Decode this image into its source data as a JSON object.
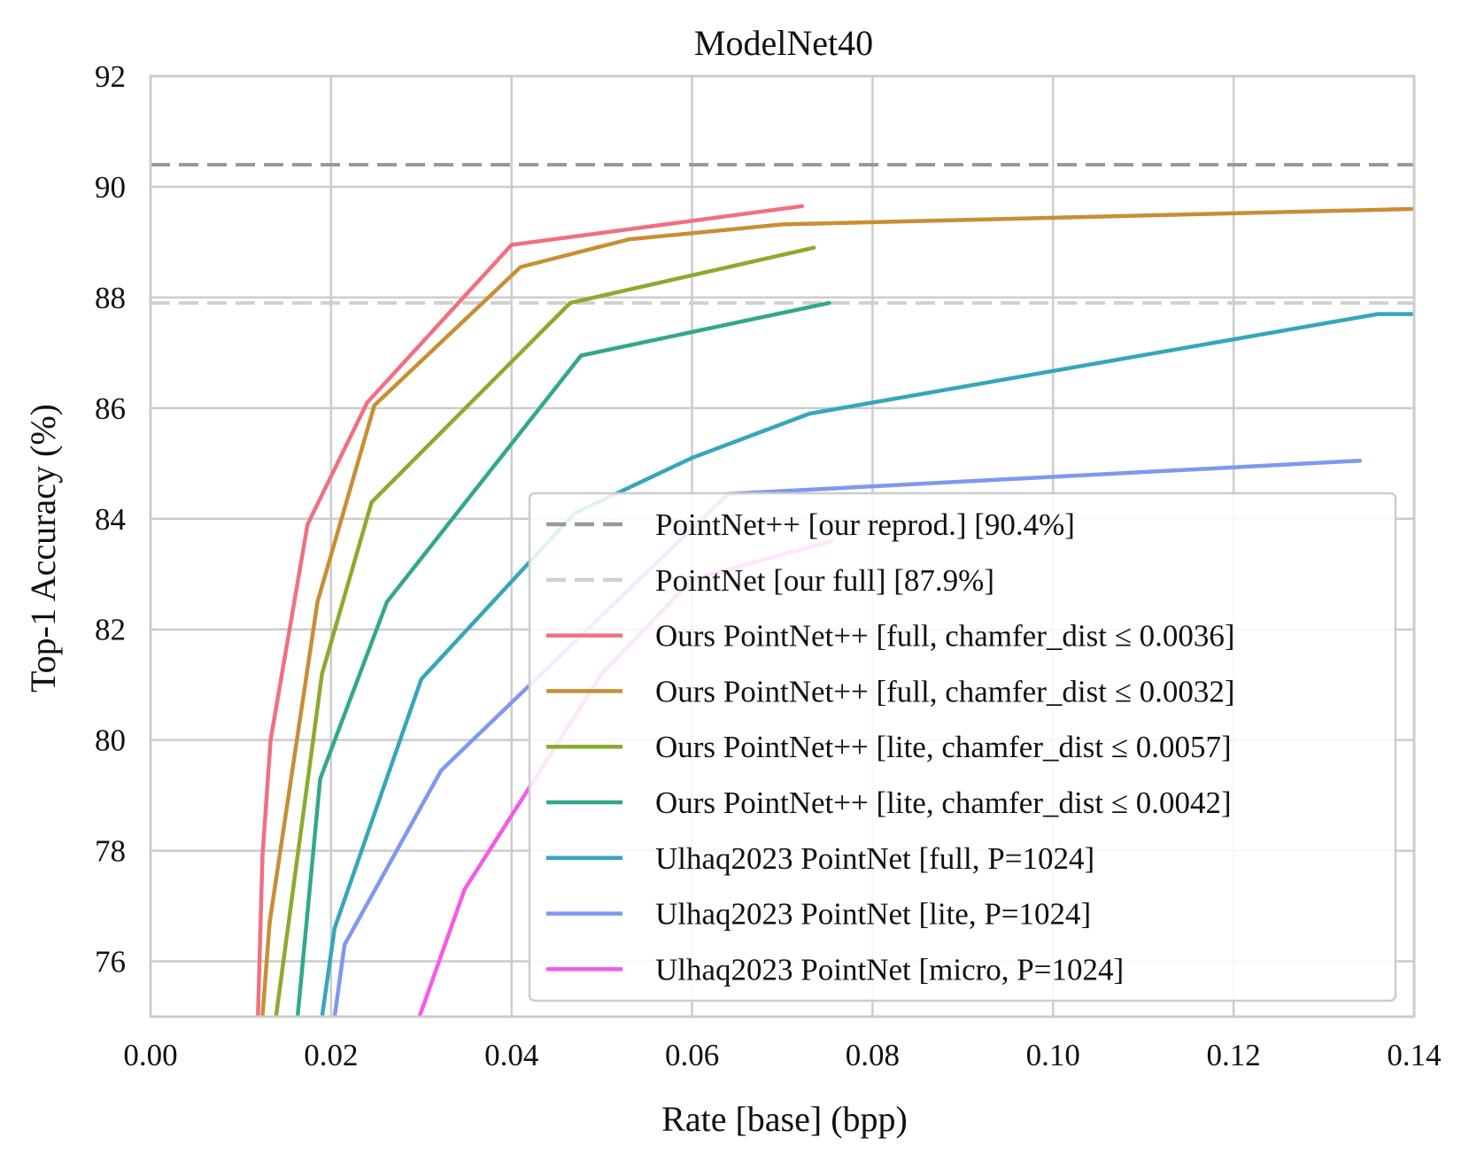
{
  "chart_data": {
    "type": "line",
    "title": "ModelNet40",
    "xlabel": "Rate [base] (bpp)",
    "ylabel": "Top-1 Accuracy (%)",
    "xlim": [
      0.0,
      0.14
    ],
    "ylim": [
      75,
      92
    ],
    "xticks": [
      0.0,
      0.02,
      0.04,
      0.06,
      0.08,
      0.1,
      0.12,
      0.14
    ],
    "xtick_labels": [
      "0.00",
      "0.02",
      "0.04",
      "0.06",
      "0.08",
      "0.10",
      "0.12",
      "0.14"
    ],
    "yticks": [
      76,
      78,
      80,
      82,
      84,
      86,
      88,
      90,
      92
    ],
    "ytick_labels": [
      "76",
      "78",
      "80",
      "82",
      "84",
      "86",
      "88",
      "90",
      "92"
    ],
    "grid": true,
    "legend_position": "lower-right",
    "reference_lines": [
      {
        "name": "PointNet++ [our reprod.] [90.4%]",
        "y": 90.4,
        "color": "#999999",
        "dash": true
      },
      {
        "name": "PointNet [our full] [87.9%]",
        "y": 87.9,
        "color": "#d0d0d0",
        "dash": true
      }
    ],
    "series": [
      {
        "name": "Ours PointNet++ [full, chamfer_dist ≤ 0.0036]",
        "color": "#f07080",
        "x": [
          0.0119,
          0.0124,
          0.0133,
          0.0174,
          0.024,
          0.04,
          0.0722
        ],
        "y": [
          75.0,
          77.9,
          80.0,
          83.9,
          86.1,
          88.95,
          89.65
        ]
      },
      {
        "name": "Ours PointNet++ [full, chamfer_dist ≤ 0.0032]",
        "color": "#c98e34",
        "x": [
          0.0124,
          0.0132,
          0.0185,
          0.0248,
          0.041,
          0.053,
          0.07,
          0.14
        ],
        "y": [
          75.0,
          76.7,
          82.5,
          86.05,
          88.55,
          89.05,
          89.32,
          89.6
        ]
      },
      {
        "name": "Ours PointNet++ [lite, chamfer_dist ≤ 0.0057]",
        "color": "#8aab2e",
        "x": [
          0.0139,
          0.019,
          0.0245,
          0.0465,
          0.0735
        ],
        "y": [
          75.0,
          81.2,
          84.3,
          87.9,
          88.9
        ]
      },
      {
        "name": "Ours PointNet++ [lite, chamfer_dist ≤ 0.0042]",
        "color": "#33a88a",
        "x": [
          0.0163,
          0.0188,
          0.0262,
          0.0477,
          0.0752
        ],
        "y": [
          75.0,
          79.3,
          82.5,
          86.95,
          87.9
        ]
      },
      {
        "name": "Ulhaq2023 PointNet [full, P=1024]",
        "color": "#36a6bb",
        "x": [
          0.019,
          0.0204,
          0.03,
          0.047,
          0.06,
          0.073,
          0.136,
          0.14
        ],
        "y": [
          75.0,
          76.6,
          81.1,
          84.1,
          85.1,
          85.9,
          87.7,
          87.7
        ]
      },
      {
        "name": "Ulhaq2023 PointNet [lite, P=1024]",
        "color": "#7f98ef",
        "x": [
          0.0204,
          0.0215,
          0.0322,
          0.064,
          0.134
        ],
        "y": [
          75.0,
          76.3,
          79.45,
          84.45,
          85.05
        ]
      },
      {
        "name": "Ulhaq2023 PointNet [micro, P=1024]",
        "color": "#f55ae8",
        "x": [
          0.0298,
          0.0348,
          0.05,
          0.06,
          0.0755
        ],
        "y": [
          75.0,
          77.3,
          81.2,
          82.9,
          83.6
        ]
      }
    ]
  }
}
